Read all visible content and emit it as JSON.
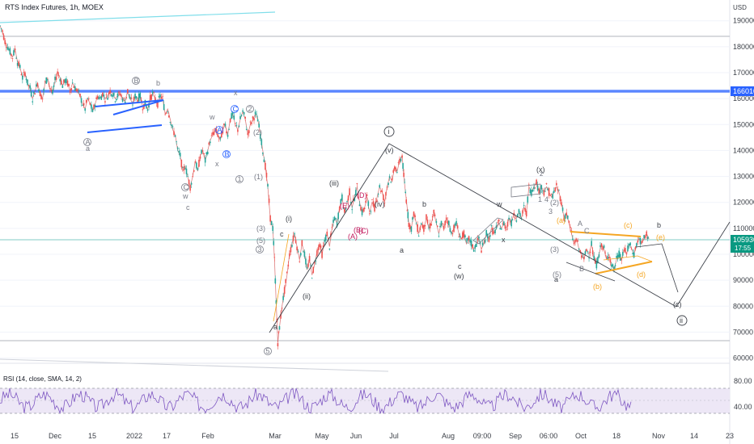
{
  "header": {
    "title": "RTS Index Futures, 1h, MOEX",
    "currency": "USD"
  },
  "rsi": {
    "title": "RSI (14, close, SMA, 14, 2)",
    "levels": [
      "80.00",
      "40.00"
    ]
  },
  "price_tags": {
    "level": "166010",
    "last": "105930",
    "countdown": "17:55"
  },
  "colors": {
    "candle_up": "#26a69a",
    "candle_down": "#ef5350",
    "wave_blue": "#2962ff",
    "wave_orange": "#f5a623",
    "wave_red": "#c2185b",
    "wave_grey": "#787b86",
    "rsi_line": "#7e57c2",
    "rsi_band": "#ede7f6"
  },
  "chart_data": {
    "type": "line",
    "ylim": [
      58000,
      198000
    ],
    "y_ticks": [
      60000,
      70000,
      80000,
      90000,
      100000,
      110000,
      120000,
      130000,
      140000,
      150000,
      160000,
      170000,
      180000,
      190000
    ],
    "x_labels": [
      "15",
      "Dec",
      "15",
      "2022",
      "17",
      "Feb",
      "Mar",
      "May",
      "Jun",
      "Jul",
      "Aug",
      "09:00",
      "Sep",
      "06:00",
      "Oct",
      "18",
      "Nov",
      "14",
      "23"
    ],
    "series": [
      {
        "values": [
          [
            0,
            188000
          ],
          [
            3,
            186000
          ],
          [
            6,
            182000
          ],
          [
            9,
            180000
          ],
          [
            12,
            178000
          ],
          [
            15,
            176000
          ],
          [
            18,
            179000
          ],
          [
            21,
            174000
          ],
          [
            24,
            172000
          ],
          [
            27,
            168000
          ],
          [
            30,
            170000
          ],
          [
            33,
            166000
          ],
          [
            36,
            164000
          ],
          [
            39,
            160000
          ],
          [
            42,
            163000
          ],
          [
            45,
            166000
          ],
          [
            48,
            162000
          ],
          [
            51,
            160000
          ],
          [
            54,
            166000
          ],
          [
            57,
            168000
          ],
          [
            60,
            164000
          ],
          [
            63,
            162000
          ],
          [
            66,
            167000
          ],
          [
            69,
            170000
          ],
          [
            72,
            168000
          ],
          [
            75,
            165000
          ],
          [
            78,
            167000
          ],
          [
            81,
            166000
          ],
          [
            84,
            163000
          ],
          [
            87,
            166000
          ],
          [
            90,
            164000
          ],
          [
            93,
            163000
          ],
          [
            96,
            161000
          ],
          [
            99,
            158000
          ],
          [
            102,
            156000
          ],
          [
            105,
            160000
          ],
          [
            108,
            158000
          ],
          [
            111,
            155000
          ],
          [
            114,
            158000
          ],
          [
            117,
            161000
          ],
          [
            120,
            160000
          ],
          [
            123,
            162000
          ],
          [
            126,
            160000
          ],
          [
            129,
            161000
          ],
          [
            132,
            163000
          ],
          [
            135,
            162000
          ],
          [
            138,
            160000
          ],
          [
            141,
            161000
          ],
          [
            144,
            162000
          ],
          [
            147,
            160000
          ],
          [
            150,
            159000
          ],
          [
            153,
            163000
          ],
          [
            156,
            160000
          ],
          [
            159,
            158000
          ],
          [
            162,
            161000
          ],
          [
            165,
            160000
          ],
          [
            168,
            161000
          ],
          [
            171,
            157000
          ],
          [
            174,
            158000
          ],
          [
            177,
            156000
          ],
          [
            180,
            160000
          ],
          [
            183,
            162000
          ],
          [
            186,
            160000
          ],
          [
            189,
            158000
          ],
          [
            192,
            161000
          ],
          [
            195,
            160000
          ],
          [
            198,
            154000
          ],
          [
            201,
            156000
          ],
          [
            204,
            152000
          ],
          [
            207,
            148000
          ],
          [
            210,
            146000
          ],
          [
            213,
            140000
          ],
          [
            216,
            138000
          ],
          [
            219,
            132000
          ],
          [
            222,
            134000
          ],
          [
            225,
            130000
          ],
          [
            228,
            126000
          ],
          [
            231,
            130000
          ],
          [
            234,
            136000
          ],
          [
            237,
            132000
          ],
          [
            240,
            138000
          ],
          [
            243,
            140000
          ],
          [
            246,
            136000
          ],
          [
            249,
            140000
          ],
          [
            252,
            144000
          ],
          [
            255,
            146000
          ],
          [
            258,
            148000
          ],
          [
            261,
            146000
          ],
          [
            264,
            144000
          ],
          [
            267,
            148000
          ],
          [
            270,
            150000
          ],
          [
            273,
            146000
          ],
          [
            276,
            152000
          ],
          [
            279,
            154000
          ],
          [
            282,
            150000
          ],
          [
            285,
            148000
          ],
          [
            288,
            152000
          ],
          [
            291,
            155000
          ],
          [
            294,
            152000
          ],
          [
            297,
            146000
          ],
          [
            300,
            150000
          ],
          [
            303,
            152000
          ],
          [
            306,
            154000
          ],
          [
            309,
            152000
          ],
          [
            312,
            146000
          ],
          [
            315,
            140000
          ],
          [
            318,
            134000
          ],
          [
            321,
            126000
          ],
          [
            324,
            114000
          ],
          [
            327,
            110000
          ],
          [
            329,
            98000
          ],
          [
            331,
            82000
          ],
          [
            333,
            66000
          ],
          [
            335,
            72000
          ],
          [
            338,
            80000
          ],
          [
            341,
            86000
          ],
          [
            344,
            92000
          ],
          [
            347,
            100000
          ],
          [
            350,
            104000
          ],
          [
            353,
            108000
          ],
          [
            356,
            103000
          ],
          [
            359,
            98000
          ],
          [
            362,
            104000
          ],
          [
            365,
            100000
          ],
          [
            368,
            94000
          ],
          [
            371,
            98000
          ],
          [
            374,
            92000
          ],
          [
            377,
            96000
          ],
          [
            380,
            101000
          ],
          [
            383,
            104000
          ],
          [
            386,
            100000
          ],
          [
            389,
            105000
          ],
          [
            392,
            108000
          ],
          [
            395,
            103000
          ],
          [
            398,
            110000
          ],
          [
            401,
            114000
          ],
          [
            404,
            112000
          ],
          [
            407,
            118000
          ],
          [
            410,
            122000
          ],
          [
            413,
            116000
          ],
          [
            416,
            120000
          ],
          [
            419,
            124000
          ],
          [
            422,
            118000
          ],
          [
            425,
            122000
          ],
          [
            428,
            126000
          ],
          [
            431,
            120000
          ],
          [
            434,
            116000
          ],
          [
            437,
            118000
          ],
          [
            440,
            122000
          ],
          [
            443,
            116000
          ],
          [
            446,
            120000
          ],
          [
            449,
            118000
          ],
          [
            452,
            122000
          ],
          [
            455,
            126000
          ],
          [
            458,
            124000
          ],
          [
            461,
            120000
          ],
          [
            464,
            126000
          ],
          [
            467,
            130000
          ],
          [
            470,
            128000
          ],
          [
            473,
            134000
          ],
          [
            476,
            132000
          ],
          [
            479,
            136000
          ],
          [
            482,
            138000
          ],
          [
            484,
            130000
          ],
          [
            486,
            124000
          ],
          [
            488,
            118000
          ],
          [
            490,
            112000
          ],
          [
            493,
            110000
          ],
          [
            496,
            116000
          ],
          [
            499,
            112000
          ],
          [
            502,
            108000
          ],
          [
            505,
            112000
          ],
          [
            508,
            110000
          ],
          [
            511,
            114000
          ],
          [
            514,
            110000
          ],
          [
            517,
            112000
          ],
          [
            520,
            116000
          ],
          [
            523,
            112000
          ],
          [
            526,
            108000
          ],
          [
            529,
            112000
          ],
          [
            532,
            110000
          ],
          [
            535,
            114000
          ],
          [
            538,
            112000
          ],
          [
            541,
            108000
          ],
          [
            544,
            110000
          ],
          [
            547,
            112000
          ],
          [
            550,
            108000
          ],
          [
            553,
            106000
          ],
          [
            556,
            108000
          ],
          [
            559,
            104000
          ],
          [
            562,
            106000
          ],
          [
            565,
            104000
          ],
          [
            568,
            102000
          ],
          [
            571,
            104000
          ],
          [
            574,
            106000
          ],
          [
            577,
            102000
          ],
          [
            580,
            104000
          ],
          [
            583,
            108000
          ],
          [
            586,
            106000
          ],
          [
            589,
            110000
          ],
          [
            592,
            108000
          ],
          [
            595,
            110000
          ],
          [
            598,
            112000
          ],
          [
            601,
            110000
          ],
          [
            604,
            112000
          ],
          [
            607,
            110000
          ],
          [
            610,
            114000
          ],
          [
            613,
            112000
          ],
          [
            616,
            116000
          ],
          [
            619,
            114000
          ],
          [
            622,
            116000
          ],
          [
            625,
            114000
          ],
          [
            628,
            118000
          ],
          [
            631,
            116000
          ],
          [
            634,
            126000
          ],
          [
            637,
            124000
          ],
          [
            640,
            126000
          ],
          [
            643,
            128000
          ],
          [
            646,
            124000
          ],
          [
            649,
            126000
          ],
          [
            652,
            124000
          ],
          [
            655,
            126000
          ],
          [
            658,
            124000
          ],
          [
            661,
            122000
          ],
          [
            664,
            124000
          ],
          [
            667,
            126000
          ],
          [
            670,
            124000
          ],
          [
            673,
            120000
          ],
          [
            676,
            114000
          ],
          [
            679,
            116000
          ],
          [
            682,
            112000
          ],
          [
            685,
            108000
          ],
          [
            688,
            104000
          ],
          [
            691,
            106000
          ],
          [
            694,
            102000
          ],
          [
            697,
            100000
          ],
          [
            700,
            98000
          ],
          [
            703,
            102000
          ],
          [
            706,
            100000
          ],
          [
            709,
            104000
          ],
          [
            712,
            98000
          ],
          [
            715,
            96000
          ],
          [
            718,
            100000
          ],
          [
            721,
            104000
          ],
          [
            724,
            102000
          ],
          [
            727,
            98000
          ],
          [
            730,
            100000
          ],
          [
            733,
            96000
          ],
          [
            736,
            94000
          ],
          [
            739,
            98000
          ],
          [
            742,
            100000
          ],
          [
            745,
            98000
          ],
          [
            748,
            102000
          ],
          [
            751,
            100000
          ],
          [
            754,
            104000
          ],
          [
            757,
            102000
          ],
          [
            760,
            100000
          ],
          [
            763,
            104000
          ],
          [
            766,
            106000
          ],
          [
            769,
            104000
          ],
          [
            772,
            106000
          ],
          [
            775,
            108000
          ],
          [
            778,
            106000
          ]
        ]
      }
    ]
  }
}
